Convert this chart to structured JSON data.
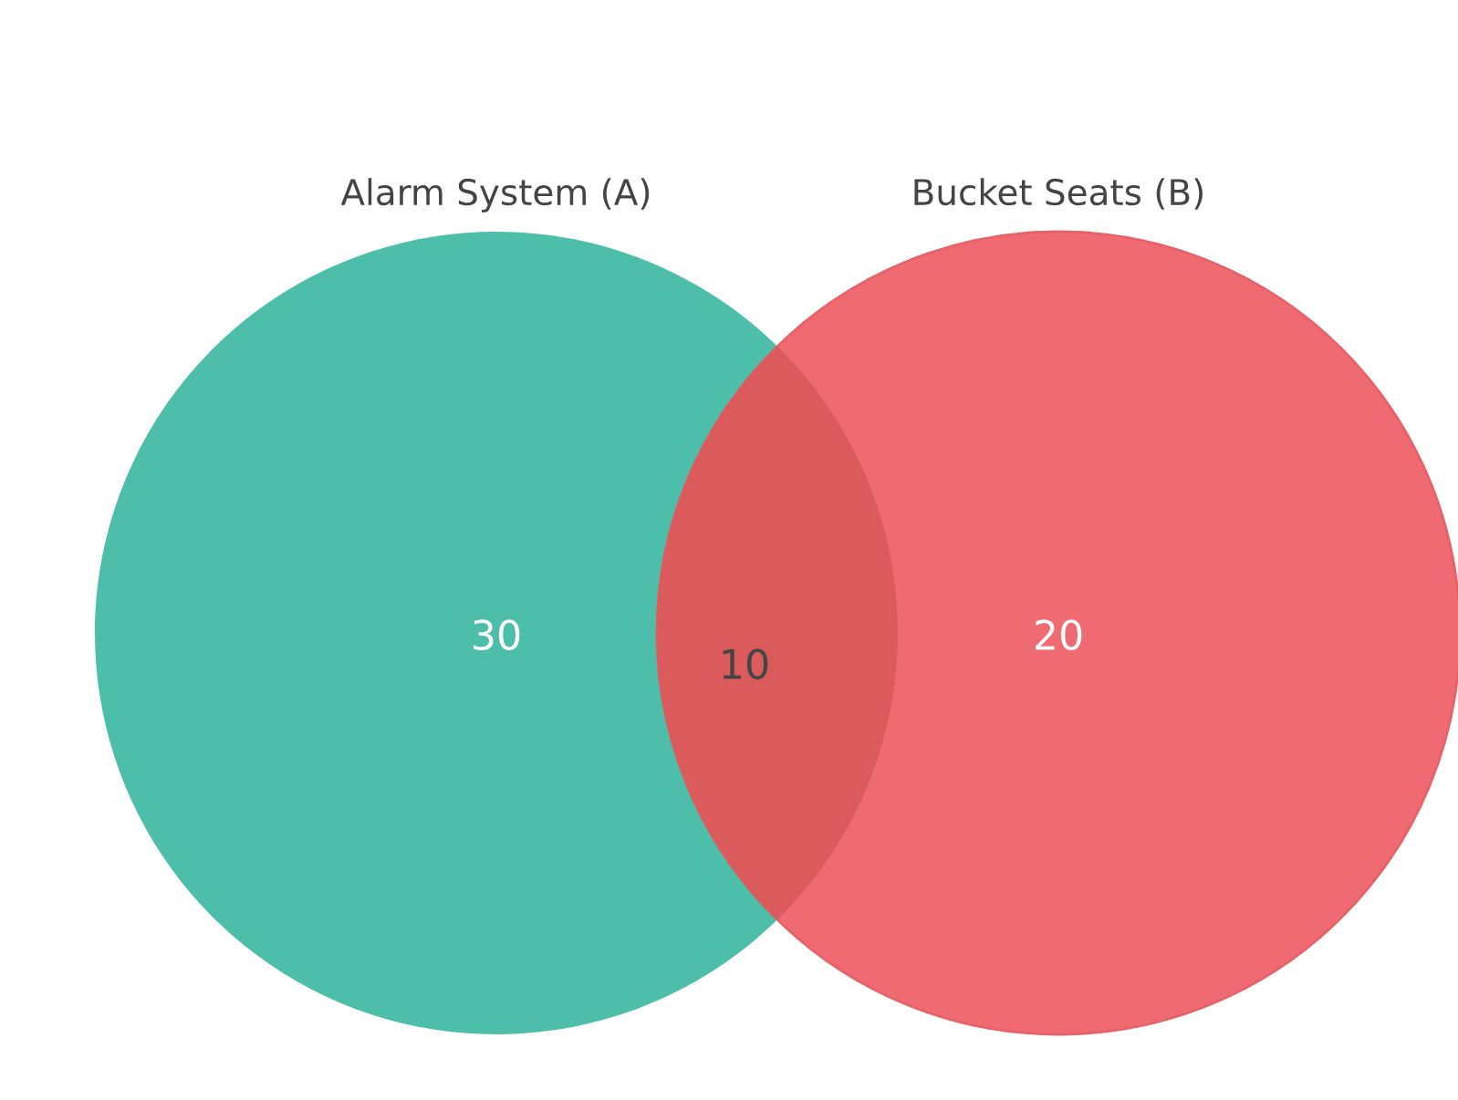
{
  "chart_data": {
    "type": "other",
    "categories": [
      "Alarm System (A)",
      "Bucket Seats (B)",
      null
    ],
    "values": [
      30,
      20,
      10
    ],
    "colors": [
      "#4dbea9",
      "#f0646a",
      "#d95a5a"
    ],
    "data_labels": true
  }
}
